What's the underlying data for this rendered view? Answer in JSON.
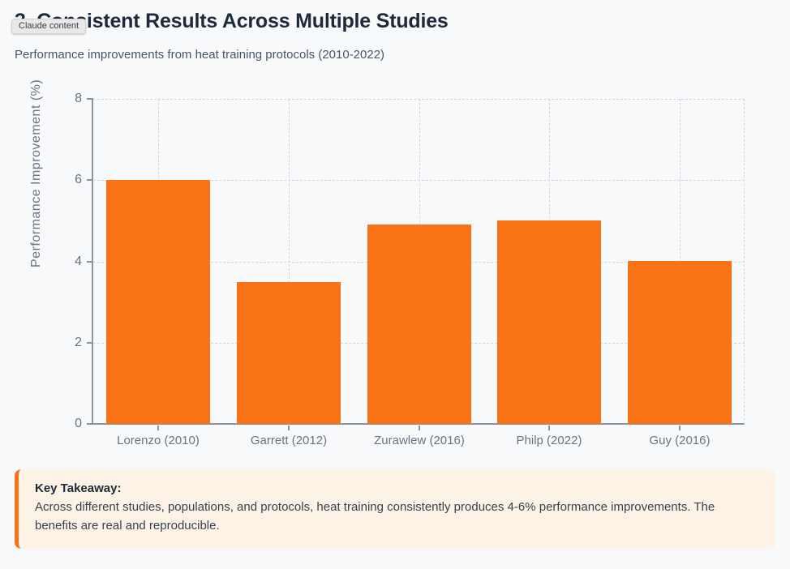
{
  "page": {
    "background": "#f8f9fb"
  },
  "badge": {
    "label": "Claude content"
  },
  "header": {
    "title": "3. Consistent Results Across Multiple Studies",
    "subtitle": "Performance improvements from heat training protocols (2010-2022)"
  },
  "chart_data": {
    "type": "bar",
    "title": "",
    "categories": [
      "Lorenzo (2010)",
      "Garrett (2012)",
      "Zurawlew (2016)",
      "Philp (2022)",
      "Guy (2016)"
    ],
    "values": [
      6,
      3.5,
      4.9,
      5,
      4
    ],
    "xlabel": "",
    "ylabel": "Performance Improvement (%)",
    "ylim": [
      0,
      8
    ],
    "yticks": [
      0,
      2,
      4,
      6,
      8
    ],
    "grid": true,
    "legend_position": "none",
    "bar_color": "#f97316",
    "gridline_color": "#d2d6db",
    "axis_color": "#8d939b",
    "tick_label_color": "#6b7280"
  },
  "takeaway": {
    "heading": "Key Takeaway:",
    "body": "Across different studies, populations, and protocols, heat training consistently produces 4-6% performance improvements. The benefits are real and reproducible.",
    "accent_color": "#f97316",
    "background": "#fdf2e6"
  }
}
